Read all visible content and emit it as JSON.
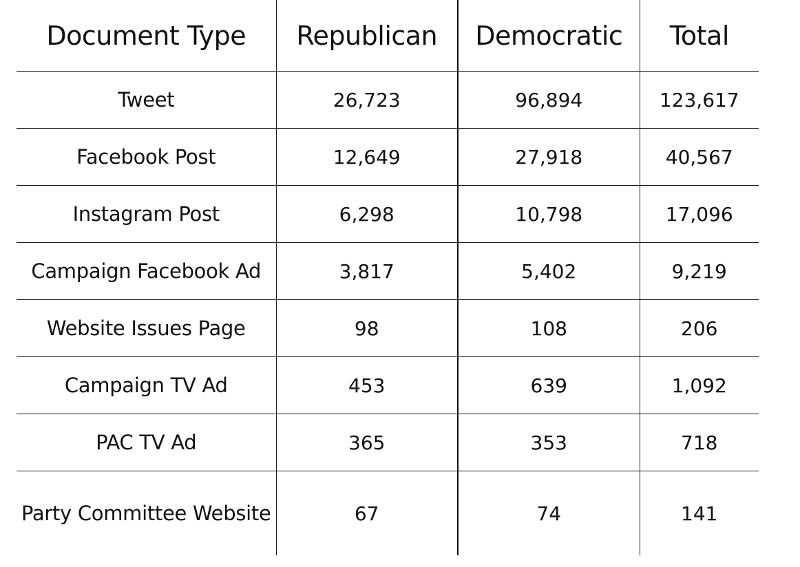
{
  "chart_data": {
    "type": "table",
    "columns": [
      "Document Type",
      "Republican",
      "Democratic",
      "Total"
    ],
    "rows": [
      [
        "Tweet",
        "26,723",
        "96,894",
        "123,617"
      ],
      [
        "Facebook Post",
        "12,649",
        "27,918",
        "40,567"
      ],
      [
        "Instagram Post",
        "6,298",
        "10,798",
        "17,096"
      ],
      [
        "Campaign Facebook Ad",
        "3,817",
        "5,402",
        "9,219"
      ],
      [
        "Website Issues Page",
        "98",
        "108",
        "206"
      ],
      [
        "Campaign TV Ad",
        "453",
        "639",
        "1,092"
      ],
      [
        "PAC TV Ad",
        "365",
        "353",
        "718"
      ],
      [
        "Party Committee Website",
        "67",
        "74",
        "141"
      ]
    ]
  }
}
